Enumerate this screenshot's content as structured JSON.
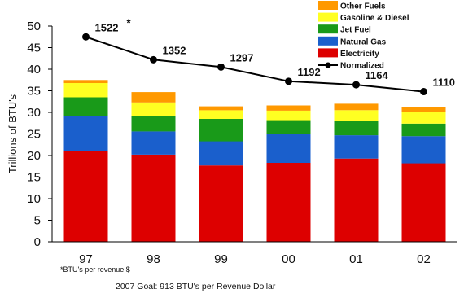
{
  "chart_data": {
    "type": "bar",
    "stacked": true,
    "categories": [
      "97",
      "98",
      "99",
      "00",
      "01",
      "02"
    ],
    "ylabel": "Trillions of BTU's",
    "xlabel": "",
    "ylim": [
      0,
      50
    ],
    "yticks": [
      0,
      5,
      10,
      15,
      20,
      25,
      30,
      35,
      40,
      45,
      50
    ],
    "grid": false,
    "legend_position": "top-right",
    "series": [
      {
        "name": "Electricity",
        "color": "#dd0000",
        "values": [
          21.0,
          20.2,
          17.7,
          18.3,
          19.3,
          18.2
        ]
      },
      {
        "name": "Natural Gas",
        "color": "#1a5fcc",
        "values": [
          8.2,
          5.4,
          5.6,
          6.7,
          5.4,
          6.3
        ]
      },
      {
        "name": "Jet Fuel",
        "color": "#199a19",
        "values": [
          4.3,
          3.5,
          5.2,
          3.2,
          3.3,
          2.9
        ]
      },
      {
        "name": "Gasoline & Diesel",
        "color": "#ffff22",
        "values": [
          3.3,
          3.2,
          2.0,
          2.2,
          2.5,
          2.7
        ]
      },
      {
        "name": "Other Fuels",
        "color": "#ff9900",
        "values": [
          0.7,
          2.4,
          0.9,
          1.2,
          1.5,
          1.2
        ]
      }
    ],
    "line_series": {
      "name": "Normalized",
      "color": "#000000",
      "y_values": [
        47.5,
        42.2,
        40.5,
        37.2,
        36.4,
        34.8
      ],
      "labels": [
        "1522",
        "1352",
        "1297",
        "1192",
        "1164",
        "1110"
      ],
      "first_label_marker": "*"
    },
    "legend_order": [
      "Other Fuels",
      "Gasoline & Diesel",
      "Jet Fuel",
      "Natural Gas",
      "Electricity",
      "Normalized"
    ]
  },
  "footnote": "*BTU's per revenue $",
  "goal_text": "2007 Goal:   913 BTU's per Revenue Dollar"
}
